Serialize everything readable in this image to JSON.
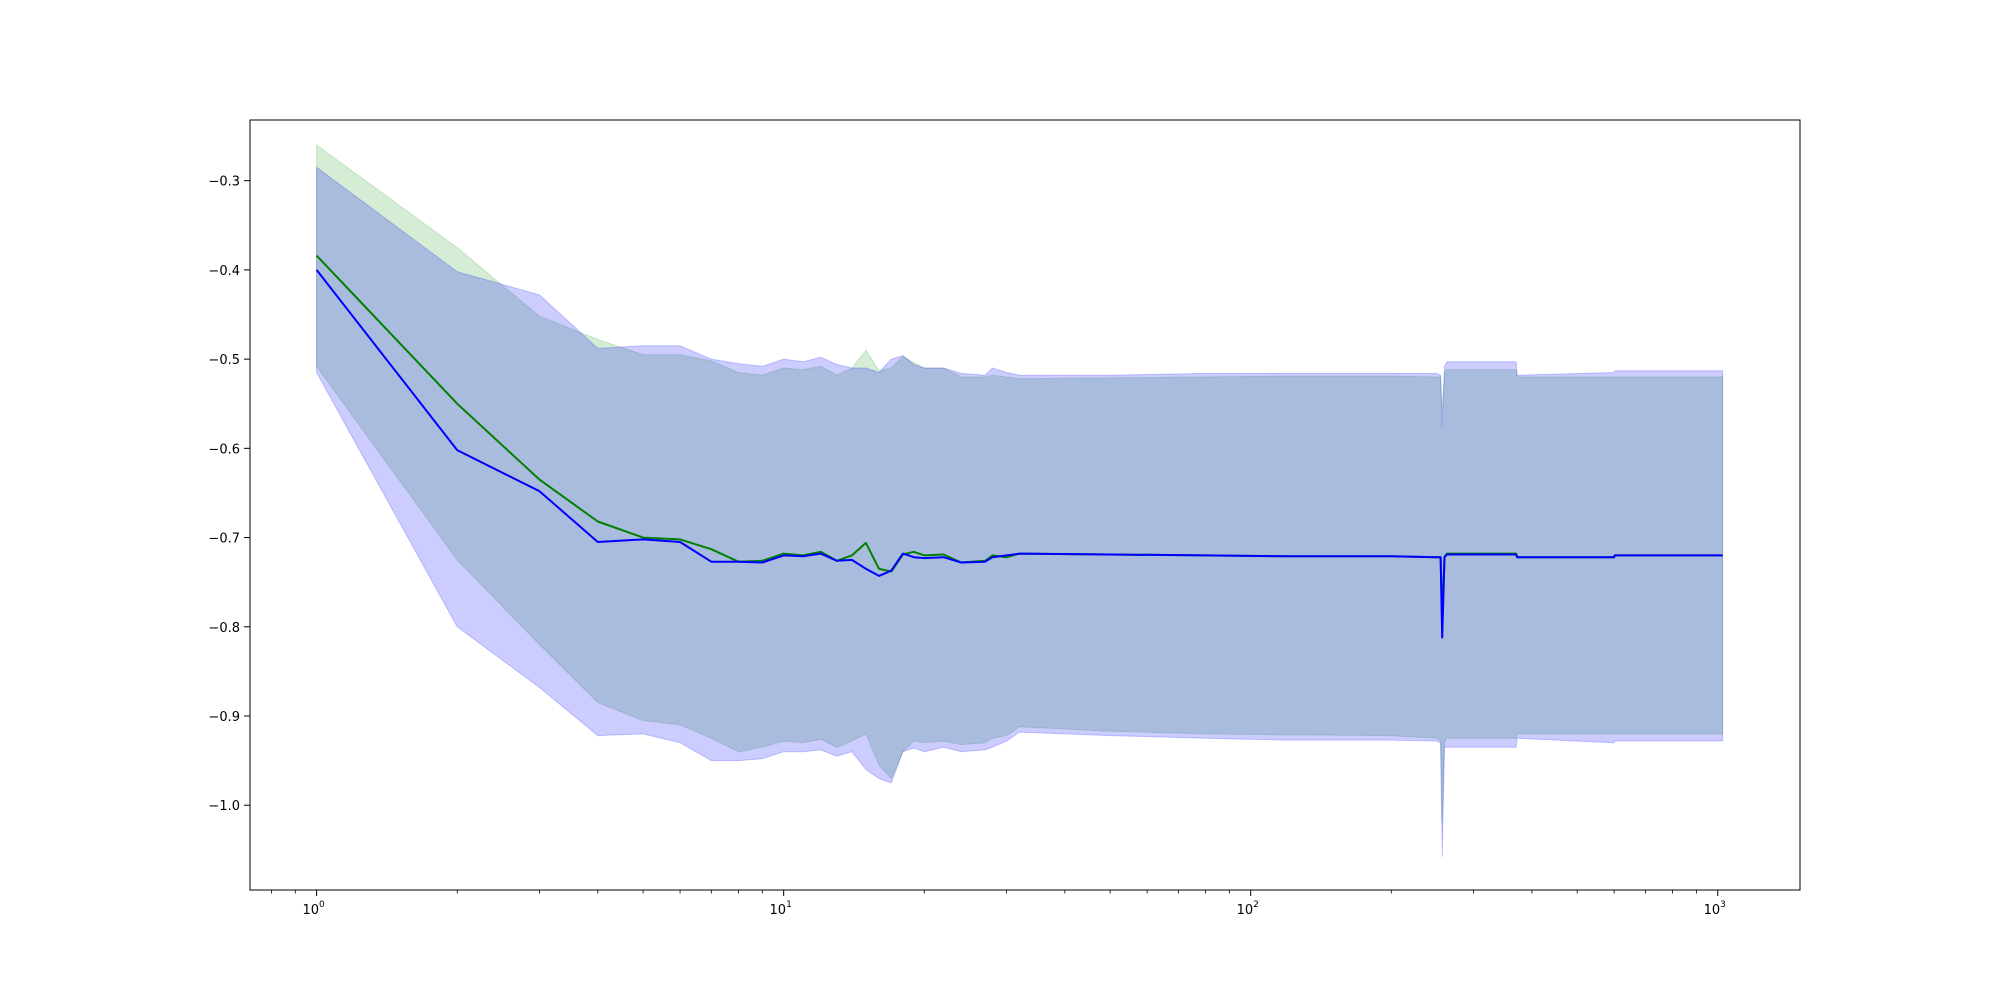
{
  "chart_data": {
    "type": "line",
    "title": "",
    "xlabel": "",
    "ylabel": "",
    "xscale": "log",
    "xlim": [
      0.72,
      1500
    ],
    "ylim": [
      -1.095,
      -0.232
    ],
    "grid": false,
    "legend": "none",
    "x_ticks": [
      {
        "value": 1,
        "label": "10",
        "exp": "0"
      },
      {
        "value": 10,
        "label": "10",
        "exp": "1"
      },
      {
        "value": 100,
        "label": "10",
        "exp": "2"
      },
      {
        "value": 1000,
        "label": "10",
        "exp": "3"
      }
    ],
    "y_ticks": [
      {
        "value": -0.3,
        "label": "−0.3"
      },
      {
        "value": -0.4,
        "label": "−0.4"
      },
      {
        "value": -0.5,
        "label": "−0.5"
      },
      {
        "value": -0.6,
        "label": "−0.6"
      },
      {
        "value": -0.7,
        "label": "−0.7"
      },
      {
        "value": -0.8,
        "label": "−0.8"
      },
      {
        "value": -0.9,
        "label": "−0.9"
      },
      {
        "value": -1.0,
        "label": "−1.0"
      }
    ],
    "series": [
      {
        "color": "#008000",
        "band_color": "#2ca02c",
        "points": [
          {
            "x": 1,
            "y": -0.384,
            "lo": -0.508,
            "hi": -0.26
          },
          {
            "x": 2,
            "y": -0.55,
            "lo": -0.725,
            "hi": -0.375
          },
          {
            "x": 3,
            "y": -0.635,
            "lo": -0.82,
            "hi": -0.452
          },
          {
            "x": 4,
            "y": -0.682,
            "lo": -0.885,
            "hi": -0.478
          },
          {
            "x": 5,
            "y": -0.7,
            "lo": -0.905,
            "hi": -0.495
          },
          {
            "x": 6,
            "y": -0.702,
            "lo": -0.91,
            "hi": -0.495
          },
          {
            "x": 7,
            "y": -0.713,
            "lo": -0.925,
            "hi": -0.502
          },
          {
            "x": 8,
            "y": -0.727,
            "lo": -0.94,
            "hi": -0.515
          },
          {
            "x": 9,
            "y": -0.726,
            "lo": -0.935,
            "hi": -0.518
          },
          {
            "x": 10,
            "y": -0.718,
            "lo": -0.928,
            "hi": -0.51
          },
          {
            "x": 11,
            "y": -0.72,
            "lo": -0.93,
            "hi": -0.512
          },
          {
            "x": 12,
            "y": -0.716,
            "lo": -0.926,
            "hi": -0.508
          },
          {
            "x": 13,
            "y": -0.726,
            "lo": -0.935,
            "hi": -0.518
          },
          {
            "x": 14,
            "y": -0.72,
            "lo": -0.928,
            "hi": -0.51
          },
          {
            "x": 15,
            "y": -0.706,
            "lo": -0.92,
            "hi": -0.49
          },
          {
            "x": 16,
            "y": -0.735,
            "lo": -0.955,
            "hi": -0.513
          },
          {
            "x": 17,
            "y": -0.738,
            "lo": -0.97,
            "hi": -0.51
          },
          {
            "x": 18,
            "y": -0.719,
            "lo": -0.94,
            "hi": -0.497
          },
          {
            "x": 19,
            "y": -0.716,
            "lo": -0.928,
            "hi": -0.504
          },
          {
            "x": 20,
            "y": -0.72,
            "lo": -0.93,
            "hi": -0.51
          },
          {
            "x": 22,
            "y": -0.719,
            "lo": -0.928,
            "hi": -0.51
          },
          {
            "x": 24,
            "y": -0.728,
            "lo": -0.932,
            "hi": -0.52
          },
          {
            "x": 27,
            "y": -0.726,
            "lo": -0.93,
            "hi": -0.52
          },
          {
            "x": 28,
            "y": -0.72,
            "lo": -0.925,
            "hi": -0.518
          },
          {
            "x": 30,
            "y": -0.722,
            "lo": -0.922,
            "hi": -0.52
          },
          {
            "x": 32,
            "y": -0.718,
            "lo": -0.912,
            "hi": -0.522
          },
          {
            "x": 50,
            "y": -0.719,
            "lo": -0.917,
            "hi": -0.521
          },
          {
            "x": 80,
            "y": -0.72,
            "lo": -0.92,
            "hi": -0.52
          },
          {
            "x": 120,
            "y": -0.721,
            "lo": -0.921,
            "hi": -0.519
          },
          {
            "x": 200,
            "y": -0.721,
            "lo": -0.922,
            "hi": -0.519
          },
          {
            "x": 250,
            "y": -0.722,
            "lo": -0.925,
            "hi": -0.52
          },
          {
            "x": 255,
            "y": -0.722,
            "lo": -0.928,
            "hi": -0.52
          },
          {
            "x": 257,
            "y": -0.79,
            "lo": -1.02,
            "hi": -0.555
          },
          {
            "x": 260,
            "y": -0.722,
            "lo": -0.93,
            "hi": -0.515
          },
          {
            "x": 263,
            "y": -0.718,
            "lo": -0.925,
            "hi": -0.512
          },
          {
            "x": 370,
            "y": -0.718,
            "lo": -0.925,
            "hi": -0.512
          },
          {
            "x": 372,
            "y": -0.722,
            "lo": -0.92,
            "hi": -0.52
          },
          {
            "x": 600,
            "y": -0.722,
            "lo": -0.92,
            "hi": -0.52
          },
          {
            "x": 602,
            "y": -0.72,
            "lo": -0.92,
            "hi": -0.52
          },
          {
            "x": 1024,
            "y": -0.72,
            "lo": -0.92,
            "hi": -0.52
          }
        ]
      },
      {
        "color": "#0000ff",
        "band_color": "#0000ff",
        "points": [
          {
            "x": 1,
            "y": -0.4,
            "lo": -0.515,
            "hi": -0.285
          },
          {
            "x": 2,
            "y": -0.602,
            "lo": -0.8,
            "hi": -0.402
          },
          {
            "x": 3,
            "y": -0.648,
            "lo": -0.868,
            "hi": -0.428
          },
          {
            "x": 4,
            "y": -0.705,
            "lo": -0.922,
            "hi": -0.488
          },
          {
            "x": 5,
            "y": -0.702,
            "lo": -0.92,
            "hi": -0.485
          },
          {
            "x": 6,
            "y": -0.705,
            "lo": -0.93,
            "hi": -0.485
          },
          {
            "x": 7,
            "y": -0.727,
            "lo": -0.95,
            "hi": -0.5
          },
          {
            "x": 8,
            "y": -0.727,
            "lo": -0.95,
            "hi": -0.505
          },
          {
            "x": 9,
            "y": -0.728,
            "lo": -0.948,
            "hi": -0.508
          },
          {
            "x": 10,
            "y": -0.72,
            "lo": -0.94,
            "hi": -0.5
          },
          {
            "x": 11,
            "y": -0.721,
            "lo": -0.94,
            "hi": -0.503
          },
          {
            "x": 12,
            "y": -0.718,
            "lo": -0.938,
            "hi": -0.498
          },
          {
            "x": 13,
            "y": -0.726,
            "lo": -0.945,
            "hi": -0.506
          },
          {
            "x": 14,
            "y": -0.725,
            "lo": -0.94,
            "hi": -0.51
          },
          {
            "x": 15,
            "y": -0.735,
            "lo": -0.96,
            "hi": -0.51
          },
          {
            "x": 16,
            "y": -0.743,
            "lo": -0.97,
            "hi": -0.515
          },
          {
            "x": 17,
            "y": -0.737,
            "lo": -0.975,
            "hi": -0.5
          },
          {
            "x": 18,
            "y": -0.718,
            "lo": -0.94,
            "hi": -0.496
          },
          {
            "x": 19,
            "y": -0.722,
            "lo": -0.936,
            "hi": -0.506
          },
          {
            "x": 20,
            "y": -0.723,
            "lo": -0.94,
            "hi": -0.51
          },
          {
            "x": 22,
            "y": -0.722,
            "lo": -0.935,
            "hi": -0.51
          },
          {
            "x": 24,
            "y": -0.728,
            "lo": -0.94,
            "hi": -0.516
          },
          {
            "x": 27,
            "y": -0.727,
            "lo": -0.938,
            "hi": -0.518
          },
          {
            "x": 28,
            "y": -0.722,
            "lo": -0.935,
            "hi": -0.51
          },
          {
            "x": 30,
            "y": -0.72,
            "lo": -0.928,
            "hi": -0.515
          },
          {
            "x": 32,
            "y": -0.718,
            "lo": -0.918,
            "hi": -0.518
          },
          {
            "x": 50,
            "y": -0.719,
            "lo": -0.922,
            "hi": -0.518
          },
          {
            "x": 80,
            "y": -0.72,
            "lo": -0.925,
            "hi": -0.516
          },
          {
            "x": 120,
            "y": -0.721,
            "lo": -0.927,
            "hi": -0.516
          },
          {
            "x": 200,
            "y": -0.721,
            "lo": -0.927,
            "hi": -0.516
          },
          {
            "x": 250,
            "y": -0.722,
            "lo": -0.928,
            "hi": -0.516
          },
          {
            "x": 255,
            "y": -0.722,
            "lo": -0.93,
            "hi": -0.518
          },
          {
            "x": 257,
            "y": -0.812,
            "lo": -1.058,
            "hi": -0.575
          },
          {
            "x": 260,
            "y": -0.722,
            "lo": -0.935,
            "hi": -0.508
          },
          {
            "x": 263,
            "y": -0.719,
            "lo": -0.935,
            "hi": -0.503
          },
          {
            "x": 370,
            "y": -0.719,
            "lo": -0.935,
            "hi": -0.503
          },
          {
            "x": 372,
            "y": -0.722,
            "lo": -0.925,
            "hi": -0.518
          },
          {
            "x": 600,
            "y": -0.722,
            "lo": -0.93,
            "hi": -0.515
          },
          {
            "x": 602,
            "y": -0.72,
            "lo": -0.928,
            "hi": -0.513
          },
          {
            "x": 1024,
            "y": -0.72,
            "lo": -0.928,
            "hi": -0.513
          }
        ]
      }
    ]
  }
}
